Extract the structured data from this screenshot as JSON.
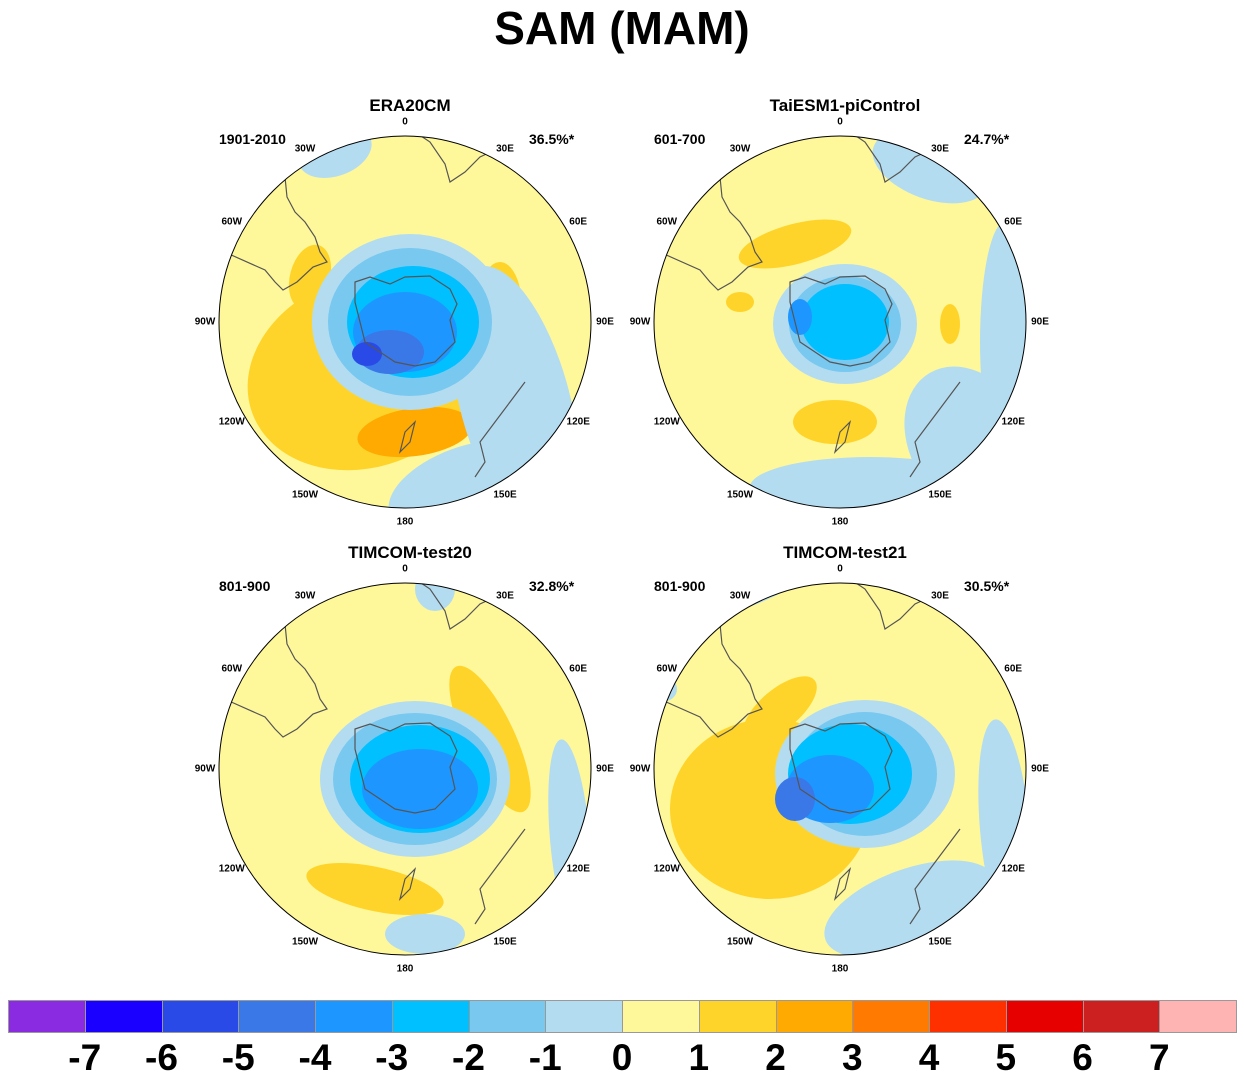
{
  "title": "SAM (MAM)",
  "longitude_labels": [
    "0",
    "30E",
    "60E",
    "90E",
    "120E",
    "150E",
    "180",
    "150W",
    "120W",
    "90W",
    "60W",
    "30W"
  ],
  "panels": [
    {
      "title": "ERA20CM",
      "period": "1901-2010",
      "variance": "36.5%*"
    },
    {
      "title": "TaiESM1-piControl",
      "period": "601-700",
      "variance": "24.7%*"
    },
    {
      "title": "TIMCOM-test20",
      "period": "801-900",
      "variance": "32.8%*"
    },
    {
      "title": "TIMCOM-test21",
      "period": "801-900",
      "variance": "30.5%*"
    }
  ],
  "colorbar": {
    "labels": [
      "-7",
      "-6",
      "-5",
      "-4",
      "-3",
      "-2",
      "-1",
      "0",
      "1",
      "2",
      "3",
      "4",
      "5",
      "6",
      "7"
    ],
    "colors": [
      "#8a2be2",
      "#1a00ff",
      "#2a4ae8",
      "#3a78e8",
      "#1e96ff",
      "#00c0ff",
      "#78c8f0",
      "#b4dcf0",
      "#fff89a",
      "#ffd42a",
      "#ffaa00",
      "#ff7a00",
      "#ff3000",
      "#e60000",
      "#cc2020",
      "#ffb4b4"
    ]
  }
}
